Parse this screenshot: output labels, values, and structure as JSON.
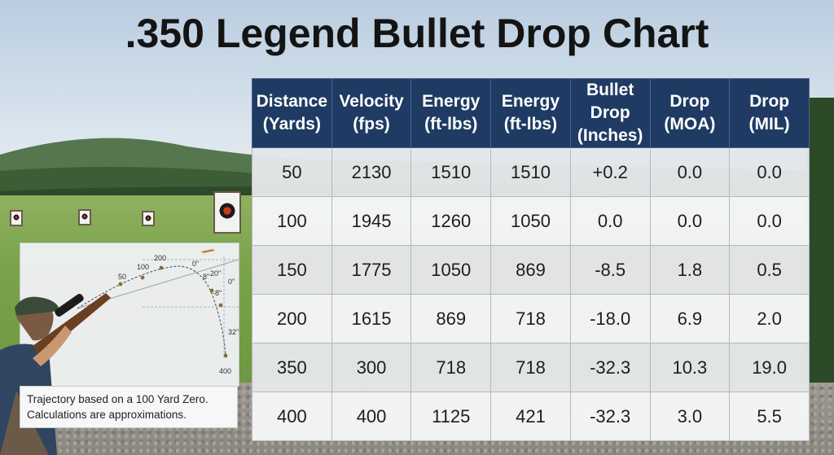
{
  "title": ".350 Legend Bullet Drop Chart",
  "chart_data": {
    "type": "table",
    "columns": [
      [
        "Distance",
        "(Yards)"
      ],
      [
        "Velocity",
        "(fps)"
      ],
      [
        "Energy",
        "(ft-lbs)"
      ],
      [
        "Energy",
        "(ft-lbs)"
      ],
      [
        "Bullet Drop",
        "(Inches)"
      ],
      [
        "Drop",
        "(MOA)"
      ],
      [
        "Drop",
        "(MIL)"
      ]
    ],
    "rows": [
      [
        "50",
        "2130",
        "1510",
        "1510",
        "+0.2",
        "0.0",
        "0.0"
      ],
      [
        "100",
        "1945",
        "1260",
        "1050",
        "0.0",
        "0.0",
        "0.0"
      ],
      [
        "150",
        "1775",
        "1050",
        "869",
        "-8.5",
        "1.8",
        "0.5"
      ],
      [
        "200",
        "1615",
        "869",
        "718",
        "-18.0",
        "6.9",
        "2.0"
      ],
      [
        "350",
        "300",
        "718",
        "718",
        "-32.3",
        "10.3",
        "19.0"
      ],
      [
        "400",
        "400",
        "1125",
        "421",
        "-32.3",
        "3.0",
        "5.5"
      ]
    ]
  },
  "diagram": {
    "distance_labels": [
      "50",
      "100",
      "200",
      "400"
    ],
    "drop_labels": [
      "0\"",
      "20\"",
      "8\"",
      "0\"",
      "-8\"",
      "32\""
    ]
  },
  "note": {
    "line1": "Trajectory based on a 100 Yard Zero.",
    "line2": "Calculations are approximations."
  },
  "colors": {
    "header_bg": "#1f3b63",
    "header_text": "#ffffff",
    "title_text": "#141414"
  }
}
